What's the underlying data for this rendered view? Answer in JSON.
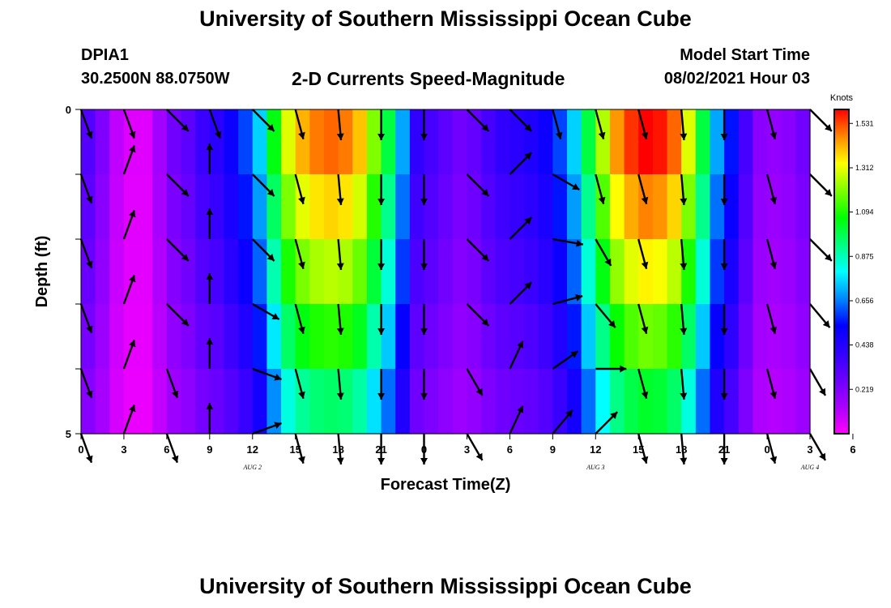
{
  "header": {
    "title": "University of Southern Mississippi Ocean Cube",
    "station": "DPIA1",
    "coords": "30.2500N  88.0750W",
    "model_start_label": "Model Start Time",
    "model_start_value": "08/02/2021 Hour 03"
  },
  "footer": {
    "title": "University of Southern Mississippi Ocean Cube"
  },
  "colors": {
    "colormap": [
      "#ff00ff",
      "#aa00ff",
      "#6a00ff",
      "#3000ff",
      "#0000ff",
      "#0088ff",
      "#00ffff",
      "#00ff80",
      "#00ff00",
      "#80ff00",
      "#ffff00",
      "#ff8800",
      "#ff0000"
    ],
    "arrow": "#000000",
    "frame": "#000000"
  },
  "chart_data": {
    "type": "heatmap",
    "title": "2-D Currents Speed-Magnitude",
    "xlabel": "Forecast Time(Z)",
    "ylabel": "Depth (ft)",
    "xlim": [
      0,
      51
    ],
    "ylim": [
      5,
      0
    ],
    "x_tick_labels": [
      "0",
      "3",
      "6",
      "9",
      "12",
      "15",
      "18",
      "21",
      "0",
      "3",
      "6",
      "9",
      "12",
      "15",
      "18",
      "21",
      "0",
      "3",
      "6"
    ],
    "y_tick_labels": [
      "0",
      "5"
    ],
    "date_labels": [
      {
        "label": "AUG  2",
        "hour": 12
      },
      {
        "label": "AUG  3",
        "hour": 36
      },
      {
        "label": "AUG  4",
        "hour": 51
      }
    ],
    "colorbar": {
      "unit": "Knots",
      "min": 0.0,
      "max": 1.6,
      "ticks": [
        "1.531",
        "1.312",
        "1.094",
        "0.875",
        "0.656",
        "0.438",
        "0.219"
      ]
    },
    "depths": [
      0,
      1,
      2,
      3,
      4,
      5
    ],
    "surface_speed_by_hour": [
      0.32,
      0.22,
      0.1,
      0.05,
      0.05,
      0.15,
      0.25,
      0.3,
      0.38,
      0.42,
      0.5,
      0.6,
      0.75,
      1.05,
      1.3,
      1.42,
      1.48,
      1.5,
      1.48,
      1.4,
      1.2,
      1.0,
      0.7,
      0.4,
      0.35,
      0.3,
      0.25,
      0.28,
      0.35,
      0.4,
      0.42,
      0.45,
      0.5,
      0.6,
      0.75,
      1.0,
      1.25,
      1.45,
      1.55,
      1.6,
      1.58,
      1.5,
      1.3,
      1.0,
      0.7,
      0.55,
      0.35,
      0.2,
      0.18,
      0.2,
      0.25
    ],
    "depth_factors": [
      1.0,
      0.92,
      0.84,
      0.74,
      0.64,
      0.5
    ],
    "vectors": {
      "hours": [
        0,
        3,
        6,
        9,
        12,
        15,
        18,
        21,
        24,
        27,
        30,
        33,
        36,
        39,
        42,
        45,
        48,
        51
      ],
      "directions_deg_by_depth": [
        [
          160,
          160,
          135,
          160,
          135,
          165,
          175,
          180,
          180,
          135,
          135,
          165,
          165,
          165,
          175,
          180,
          165,
          135
        ],
        [
          160,
          20,
          135,
          0,
          135,
          165,
          175,
          180,
          180,
          135,
          45,
          120,
          165,
          165,
          175,
          180,
          165,
          135
        ],
        [
          160,
          20,
          135,
          0,
          135,
          165,
          175,
          180,
          180,
          135,
          45,
          100,
          150,
          165,
          175,
          180,
          165,
          135
        ],
        [
          160,
          20,
          135,
          0,
          120,
          165,
          175,
          180,
          180,
          135,
          45,
          75,
          140,
          165,
          175,
          180,
          165,
          140
        ],
        [
          160,
          20,
          160,
          0,
          110,
          165,
          175,
          180,
          180,
          150,
          25,
          55,
          90,
          165,
          175,
          180,
          165,
          150
        ],
        [
          160,
          20,
          160,
          0,
          70,
          165,
          175,
          180,
          180,
          150,
          25,
          40,
          45,
          165,
          175,
          180,
          165,
          150
        ]
      ]
    }
  }
}
